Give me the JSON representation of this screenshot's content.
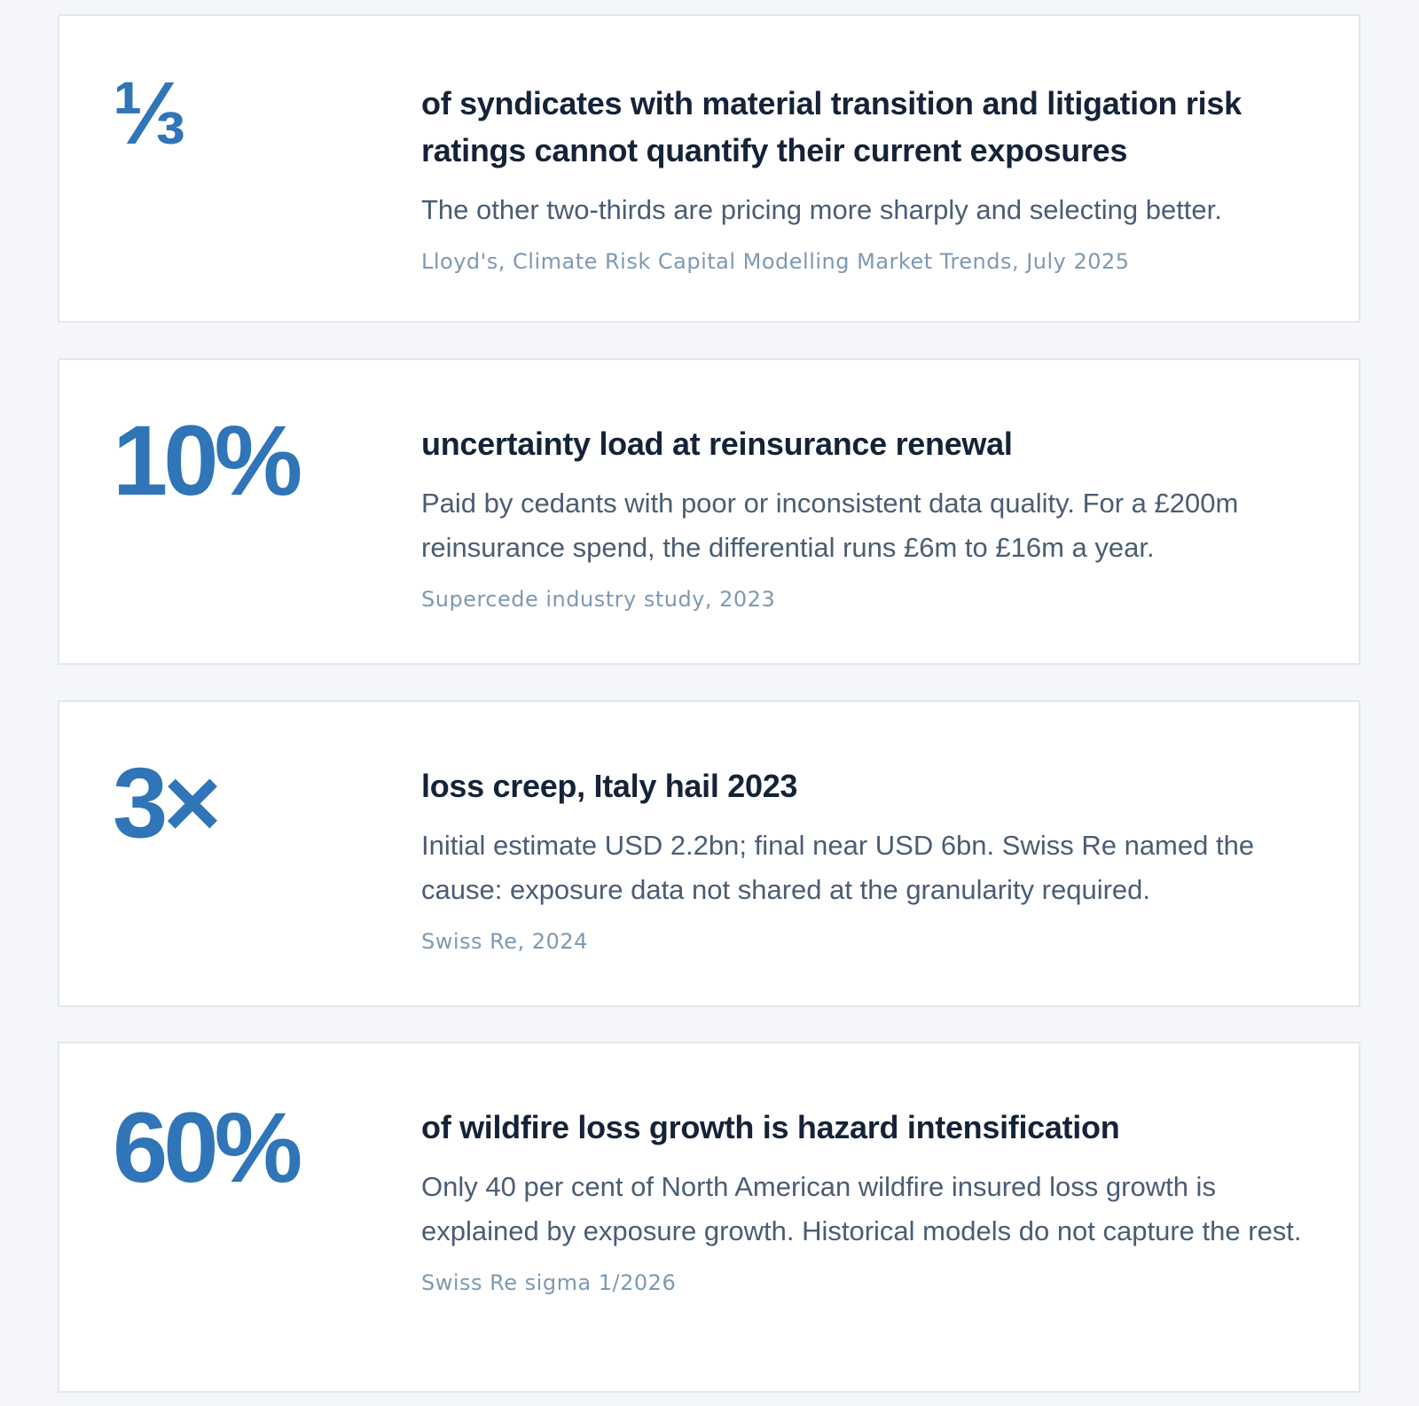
{
  "stats": [
    {
      "figure": "⅓",
      "headline": "of syndicates with material transition and litigation risk ratings cannot quantify their current exposures",
      "description": "The other two-thirds are pricing more sharply and selecting better.",
      "source": "Lloyd's, Climate Risk Capital Modelling Market Trends, July 2025"
    },
    {
      "figure": "10%",
      "headline": "uncertainty load at reinsurance renewal",
      "description": "Paid by cedants with poor or inconsistent data quality. For a £200m reinsurance spend, the differential runs £6m to £16m a year.",
      "source": "Supercede industry study, 2023"
    },
    {
      "figure": "3×",
      "headline": "loss creep, Italy hail 2023",
      "description": "Initial estimate USD 2.2bn; final near USD 6bn. Swiss Re named the cause: exposure data not shared at the granularity required.",
      "source": "Swiss Re, 2024"
    },
    {
      "figure": "60%",
      "headline": "of wildfire loss growth is hazard intensification",
      "description": "Only 40 per cent of North American wildfire insured loss growth is explained by exposure growth. Historical models do not capture the rest.",
      "source": "Swiss Re sigma 1/2026"
    }
  ]
}
